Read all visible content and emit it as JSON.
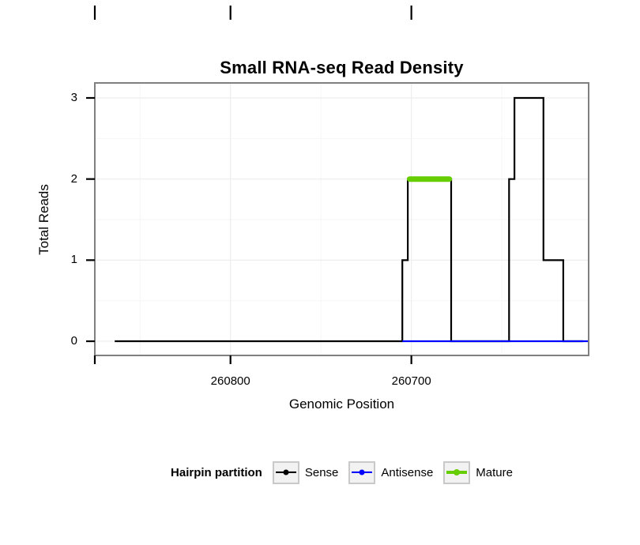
{
  "chart_data": {
    "type": "line",
    "subtype": "step",
    "title": "Small RNA-seq Read Density",
    "xlabel": "Genomic Position",
    "ylabel": "Total Reads",
    "x_axis": {
      "direction": "decreasing",
      "range_left_to_right": [
        260875,
        260602
      ],
      "ticks": [
        {
          "value": 260875,
          "label": ""
        },
        {
          "value": 260800,
          "label": "260800"
        },
        {
          "value": 260700,
          "label": "260700"
        }
      ],
      "minor_gridlines": [
        260850,
        260750,
        260650
      ],
      "top_edge_marks": [
        260875,
        260800,
        260700
      ]
    },
    "y_axis": {
      "range_bottom_to_top": [
        -0.175,
        3.185
      ],
      "ticks": [
        {
          "value": 0,
          "label": "0"
        },
        {
          "value": 1,
          "label": "1"
        },
        {
          "value": 2,
          "label": "2"
        },
        {
          "value": 3,
          "label": "3"
        }
      ],
      "minor_gridlines": [
        0.5,
        1.5,
        2.5
      ]
    },
    "series": [
      {
        "name": "Sense",
        "color": "#000000",
        "line_width": 2.2,
        "linecap": "butt",
        "points": [
          [
            260864,
            0
          ],
          [
            260705,
            0
          ],
          [
            260705,
            1
          ],
          [
            260702,
            1
          ],
          [
            260702,
            2
          ],
          [
            260678,
            2
          ],
          [
            260678,
            0
          ],
          [
            260646,
            0
          ],
          [
            260646,
            2
          ],
          [
            260643,
            2
          ],
          [
            260643,
            3
          ],
          [
            260627,
            3
          ],
          [
            260627,
            1
          ],
          [
            260616,
            1
          ],
          [
            260616,
            0
          ],
          [
            260605,
            0
          ]
        ]
      },
      {
        "name": "Antisense",
        "color": "#0000ff",
        "line_width": 2.2,
        "linecap": "butt",
        "points": [
          [
            260705,
            0
          ],
          [
            260602,
            0
          ]
        ]
      },
      {
        "name": "Mature",
        "color": "#66CD00",
        "line_width": 7,
        "linecap": "round",
        "points": [
          [
            260701,
            2
          ],
          [
            260679,
            2
          ]
        ]
      }
    ],
    "legend": {
      "title": "Hairpin partition",
      "position": "bottom",
      "entries": [
        {
          "label": "Sense",
          "color": "#000000",
          "key_line_width": 2.2,
          "key_dot_size": 7
        },
        {
          "label": "Antisense",
          "color": "#0000ff",
          "key_line_width": 2.2,
          "key_dot_size": 7
        },
        {
          "label": "Mature",
          "color": "#66CD00",
          "key_line_width": 4,
          "key_dot_size": 8
        }
      ]
    },
    "colors": {
      "panel_border": "#808080",
      "grid_major": "#ededed",
      "grid_minor": "#f6f6f6",
      "tick": "#000000"
    }
  }
}
